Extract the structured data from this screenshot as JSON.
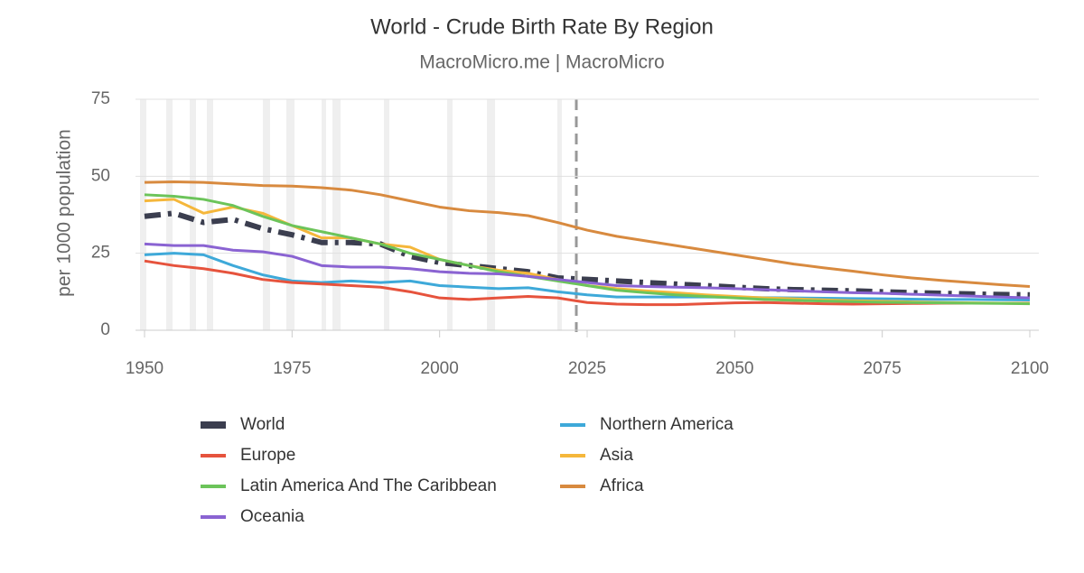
{
  "chart_data": {
    "type": "line",
    "title": "World - Crude Birth Rate By Region",
    "subtitle": "MacroMicro.me | MacroMicro",
    "y_label": "per 1000 population",
    "x": [
      1950,
      1955,
      1960,
      1965,
      1970,
      1975,
      1980,
      1985,
      1990,
      1995,
      2000,
      2005,
      2010,
      2015,
      2020,
      2025,
      2030,
      2035,
      2040,
      2045,
      2050,
      2055,
      2060,
      2065,
      2070,
      2075,
      2080,
      2085,
      2090,
      2095,
      2100
    ],
    "xlim": [
      1950,
      2100
    ],
    "xticks": [
      1950,
      1975,
      2000,
      2025,
      2050,
      2075,
      2100
    ],
    "ylim": [
      0,
      75
    ],
    "yticks": [
      0,
      25,
      50,
      75
    ],
    "grid": true,
    "series": [
      {
        "name": "World",
        "color": "#3b3e4f",
        "line_style": "dash-dot",
        "values": [
          37,
          38,
          35,
          36,
          33,
          31,
          28.5,
          28.5,
          28,
          24,
          22,
          21,
          20,
          19,
          17,
          16.5,
          16,
          15.5,
          15,
          14.5,
          14,
          13.5,
          13.2,
          13,
          12.8,
          12.5,
          12.2,
          12,
          11.8,
          11.6,
          11.5
        ]
      },
      {
        "name": "Northern America",
        "color": "#3ea9d9",
        "values": [
          24.5,
          25,
          24.5,
          21,
          18,
          16,
          15.5,
          16,
          15.5,
          16,
          14.5,
          14,
          13.5,
          13.8,
          12.5,
          11.5,
          10.8,
          10.8,
          10.8,
          10.8,
          10.7,
          10.6,
          10.5,
          10.4,
          10.3,
          10.2,
          10.1,
          10,
          10,
          9.9,
          9.8
        ]
      },
      {
        "name": "Europe",
        "color": "#e6533d",
        "values": [
          22.5,
          21,
          20,
          18.5,
          16.5,
          15.5,
          15,
          14.5,
          14,
          12.5,
          10.5,
          10,
          10.5,
          11,
          10.5,
          9,
          8.5,
          8.3,
          8.3,
          8.6,
          8.9,
          9,
          8.8,
          8.6,
          8.5,
          8.6,
          8.7,
          8.8,
          8.8,
          8.8,
          8.8
        ]
      },
      {
        "name": "Asia",
        "color": "#f5b73b",
        "values": [
          42,
          42.5,
          38,
          40,
          38,
          34,
          30,
          30,
          28,
          27,
          23,
          21,
          19.5,
          18.5,
          16.5,
          14.5,
          13.5,
          12.8,
          12.2,
          11.5,
          11,
          10.5,
          10.2,
          9.9,
          9.6,
          9.4,
          9.2,
          9,
          8.9,
          8.8,
          8.7
        ]
      },
      {
        "name": "Latin America And The Caribbean",
        "color": "#6cc45a",
        "values": [
          44,
          43.5,
          42.5,
          40.5,
          37,
          34,
          32,
          30,
          28,
          25,
          23,
          21,
          19,
          17.5,
          16,
          14.5,
          13,
          12.2,
          11.5,
          11,
          10.5,
          10,
          9.7,
          9.5,
          9.3,
          9.1,
          9,
          8.9,
          8.8,
          8.7,
          8.6
        ]
      },
      {
        "name": "Africa",
        "color": "#d88a3f",
        "values": [
          48,
          48.2,
          48,
          47.5,
          47,
          46.8,
          46.3,
          45.5,
          44,
          42,
          40,
          38.8,
          38.2,
          37.2,
          35,
          32.5,
          30.5,
          29,
          27.5,
          26,
          24.5,
          23,
          21.5,
          20.3,
          19.2,
          18,
          17,
          16.2,
          15.5,
          14.8,
          14.2
        ]
      },
      {
        "name": "Oceania",
        "color": "#8a63d2",
        "values": [
          28,
          27.5,
          27.5,
          26,
          25.5,
          24,
          21,
          20.5,
          20.5,
          20,
          19,
          18.5,
          18.3,
          17.5,
          16.5,
          15.5,
          14.5,
          14.2,
          14,
          13.8,
          13.5,
          13.2,
          12.8,
          12.5,
          12.2,
          12,
          11.7,
          11.4,
          11.1,
          10.8,
          10.5
        ]
      }
    ]
  }
}
